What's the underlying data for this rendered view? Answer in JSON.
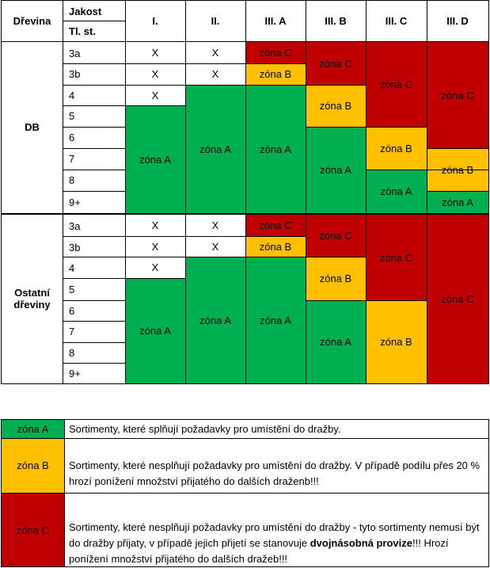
{
  "table": {
    "header": {
      "drevina": "Dřevina",
      "jakost": "Jakost",
      "tl_st": "Tl. st.",
      "columns": [
        "I.",
        "II.",
        "III. A",
        "III. B",
        "III. C",
        "III. D"
      ]
    },
    "groups": [
      {
        "name": "DB",
        "rows": [
          "3a",
          "3b",
          "4",
          "5",
          "6",
          "7",
          "8",
          "9+"
        ],
        "x_mark": "X",
        "zones": {
          "col1": "zóna A",
          "col2": "zóna A",
          "col3_r1": "zóna C",
          "col3_r2": "zóna B",
          "col3_rest": "zóna A",
          "col4_top": "zóna C",
          "col4_mid": "zóna B",
          "col4_bot": "zóna A",
          "col5_top": "zóna C",
          "col5_mid": "zóna B",
          "col5_bot": "zóna A",
          "col6_top": "zóna C",
          "col6_mid": "zóna B",
          "col6_bot": "zóna A"
        }
      },
      {
        "name": "Ostatní dřeviny",
        "rows": [
          "3a",
          "3b",
          "4",
          "5",
          "6",
          "7",
          "8",
          "9+"
        ],
        "x_mark": "X",
        "zones": {
          "col1": "zóna A",
          "col2": "zóna A",
          "col3_r1": "zóna C",
          "col3_r2": "zóna B",
          "col3_rest": "zóna A",
          "col4_top": "zóna C",
          "col4_mid": "zóna B",
          "col4_bot": "zóna A",
          "col5_top": "zóna C",
          "col5_bot": "zóna B",
          "col6": "zóna C"
        }
      }
    ]
  },
  "legend": [
    {
      "zone": "zóna A",
      "color": "#00b050",
      "text": "Sortimenty, které splňují požadavky pro umístění do dražby."
    },
    {
      "zone": "zóna B",
      "color": "#ffc000",
      "text": "Sortimenty, které nesplňují požadavky pro umístění do dražby. V případě podílu přes 20 % hrozí ponížení množství přijatého do dalších draženb!!!"
    },
    {
      "zone": "zóna C",
      "color": "#c00000",
      "text_before": "Sortimenty, které nesplňují požadavky pro umístění do dražby - tyto sortimenty nemusí být do dražby přijaty, v případě jejich přijetí se stanovuje ",
      "text_bold": "dvojnásobná provize",
      "text_after": "!!! Hrozí ponížení množství přijatého do dalších dražeb!!!"
    }
  ],
  "colors": {
    "green": "#00b050",
    "yellow": "#ffc000",
    "red": "#c00000"
  }
}
